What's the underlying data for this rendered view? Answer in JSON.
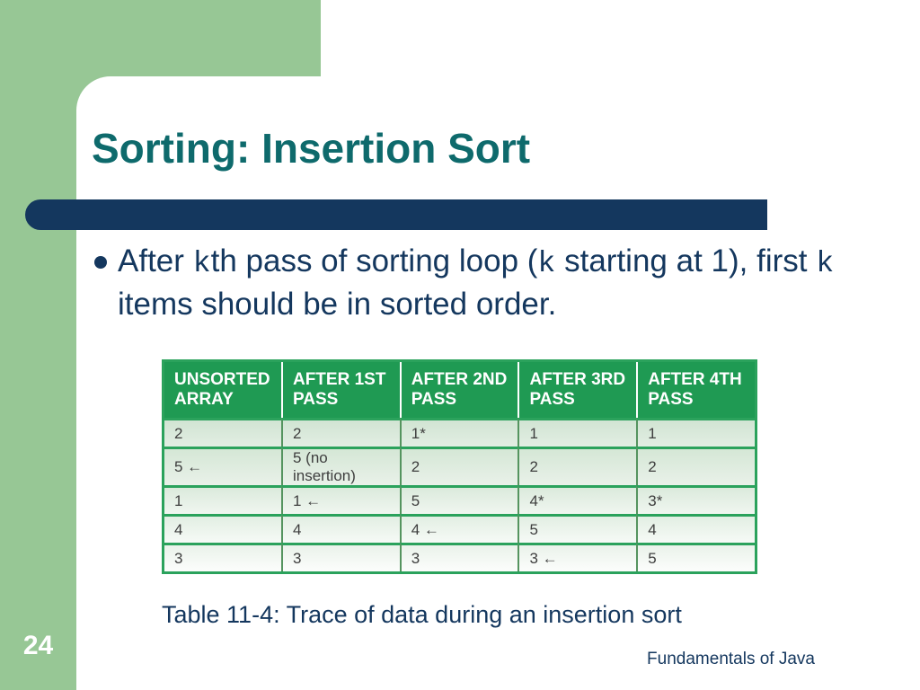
{
  "slide": {
    "title": "Sorting: Insertion Sort",
    "bullet": {
      "segments": [
        {
          "text": "After ",
          "mono": false
        },
        {
          "text": "k",
          "mono": true
        },
        {
          "text": "th pass of sorting loop (",
          "mono": false
        },
        {
          "text": "k",
          "mono": true
        },
        {
          "text": " starting at 1), first ",
          "mono": false
        },
        {
          "text": "k",
          "mono": true
        },
        {
          "text": " items should be in sorted order.",
          "mono": false
        }
      ]
    },
    "table": {
      "headers": [
        "UNSORTED ARRAY",
        "AFTER 1ST PASS",
        "AFTER 2ND PASS",
        "AFTER 3RD PASS",
        "AFTER 4TH PASS"
      ],
      "rows": [
        [
          "2",
          "2",
          "1*",
          "1",
          "1"
        ],
        [
          "5 ←",
          "5 (no insertion)",
          "2",
          "2",
          "2"
        ],
        [
          "1",
          "1 ←",
          "5",
          "4*",
          "3*"
        ],
        [
          "4",
          "4",
          "4 ←",
          "5",
          "4"
        ],
        [
          "3",
          "3",
          "3",
          "3 ←",
          "5"
        ]
      ]
    },
    "caption": "Table 11-4: Trace of data during an insertion sort",
    "page_number": "24",
    "footer": "Fundamentals of Java",
    "colors": {
      "background_green": "#97c795",
      "navy": "#14375e",
      "title_teal": "#0e6a6c",
      "table_header_green": "#1f9a53",
      "table_border_green": "#2ba25c"
    }
  }
}
